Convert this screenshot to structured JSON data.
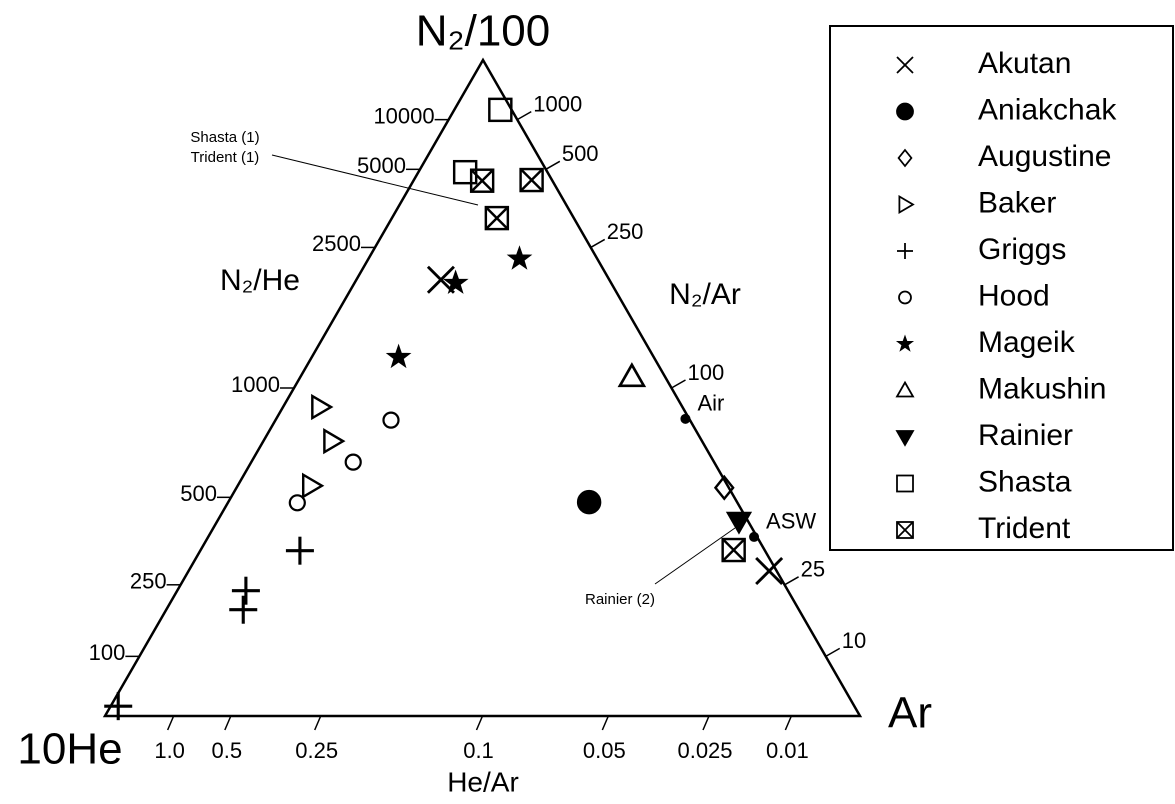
{
  "chart_data": {
    "type": "ternary",
    "top_label": "N₂/100",
    "left_label": "10He",
    "right_label": "Ar",
    "left_edge_label": "N₂/He",
    "right_edge_label": "N₂/Ar",
    "bottom_edge_label": "He/Ar",
    "left_ticks": [
      10000,
      5000,
      2500,
      1000,
      500,
      250,
      100
    ],
    "right_ticks": [
      1000,
      500,
      250,
      100,
      25,
      10
    ],
    "bottom_ticks": [
      {
        "value": 1,
        "label": "1.0"
      },
      0.5,
      0.25,
      0.1,
      0.05,
      0.025,
      0.01
    ],
    "series": [
      {
        "name": "Akutan",
        "marker": "x",
        "n2": [
          66.5,
          22.1
        ],
        "he": [
          22.3,
          1.0
        ],
        "ar": [
          11.2,
          76.9
        ]
      },
      {
        "name": "Aniakchak",
        "marker": "filled-circle",
        "n2": [
          32.6
        ],
        "he": [
          19.6
        ],
        "ar": [
          47.8
        ]
      },
      {
        "name": "Augustine",
        "marker": "diamond",
        "n2": [
          34.8
        ],
        "he": [
          0.6
        ],
        "ar": [
          64.6
        ]
      },
      {
        "name": "Baker",
        "marker": "triangle-right",
        "n2": [
          47.1,
          41.9,
          35.1
        ],
        "he": [
          48.0,
          49.0,
          55.2
        ],
        "ar": [
          4.9,
          9.1,
          9.7
        ]
      },
      {
        "name": "Griggs",
        "marker": "plus",
        "n2": [
          1.5,
          25.2,
          19.1,
          16.2
        ],
        "he": [
          97.5,
          61.6,
          71.8,
          73.6
        ],
        "ar": [
          1.0,
          13.2,
          9.1,
          10.2
        ]
      },
      {
        "name": "Hood",
        "marker": "circle",
        "n2": [
          45.1,
          38.7,
          32.5
        ],
        "he": [
          39.6,
          47.8,
          58.3
        ],
        "ar": [
          15.3,
          13.5,
          9.2
        ]
      },
      {
        "name": "Mageik",
        "marker": "star",
        "n2": [
          69.7,
          66.0,
          54.7
        ],
        "he": [
          10.3,
          20.6,
          33.8
        ],
        "ar": [
          20.0,
          13.4,
          11.5
        ]
      },
      {
        "name": "Makushin",
        "marker": "triangle-up",
        "n2": [
          51.7
        ],
        "he": [
          4.4
        ],
        "ar": [
          43.9
        ]
      },
      {
        "name": "Rainier",
        "marker": "filled-triangle-down",
        "n2": [
          29.7
        ],
        "he": [
          1.2
        ],
        "ar": [
          69.1
        ]
      },
      {
        "name": "Shasta",
        "marker": "square",
        "n2": [
          92.4,
          82.9
        ],
        "he": [
          1.5,
          10.9
        ],
        "ar": [
          6.1,
          6.2
        ]
      },
      {
        "name": "Trident",
        "marker": "crossed-square",
        "n2": [
          81.7,
          81.6,
          75.9,
          25.3
        ],
        "he": [
          2.7,
          9.3,
          10.2,
          4.1
        ],
        "ar": [
          15.6,
          9.1,
          13.9,
          70.6
        ]
      }
    ],
    "reference_points": [
      {
        "label": "Air",
        "n2": 45.3,
        "he": 0.5,
        "ar": 54.2
      },
      {
        "label": "ASW",
        "n2": 27.3,
        "he": 0.4,
        "ar": 72.3
      }
    ],
    "annotations": [
      "Shasta (1)",
      "Trident (1)",
      "Rainier (2)"
    ]
  }
}
